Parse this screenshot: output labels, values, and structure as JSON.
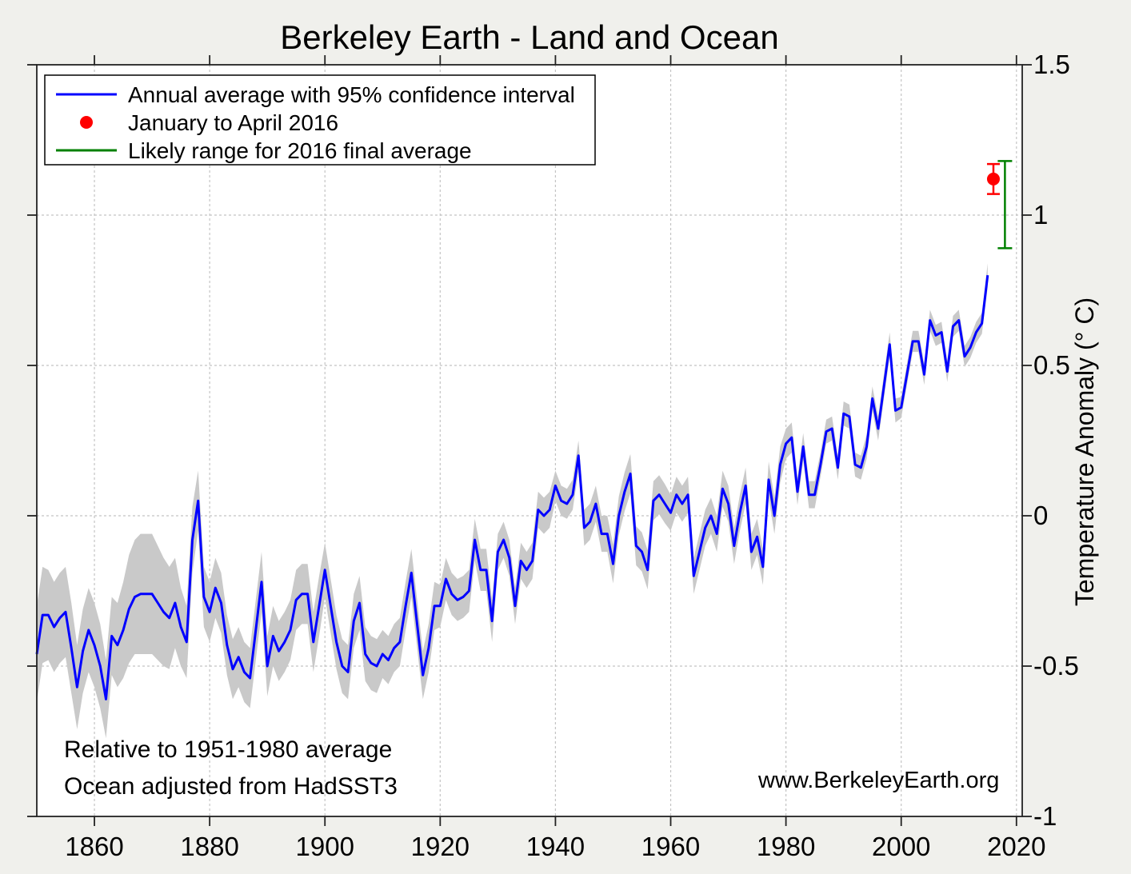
{
  "title": "Berkeley Earth - Land and Ocean",
  "watermark": "www.BerkeleyEarth.org",
  "notes": [
    "Relative to 1951-1980 average",
    "Ocean adjusted from HadSST3"
  ],
  "legend": [
    {
      "label": "Annual average with 95% confidence interval",
      "marker": "line",
      "color": "#0000ff"
    },
    {
      "label": "January to April 2016",
      "marker": "dot",
      "color": "#ff0000"
    },
    {
      "label": "Likely range for 2016 final average",
      "marker": "line",
      "color": "#008000"
    }
  ],
  "colors": {
    "line": "#0000ff",
    "band": "#c9c9c9",
    "point": "#ff0000",
    "range": "#008000",
    "grid": "#c4c4c4",
    "axis": "#222222",
    "figure_bg": "#f0f0ec",
    "plot_bg": "#ffffff"
  },
  "chart_data": {
    "type": "line",
    "title": "Berkeley Earth - Land and Ocean",
    "xlabel": "",
    "ylabel": "Temperature Anomaly (° C)",
    "xlim": [
      1850,
      2021
    ],
    "ylim": [
      -1,
      1.5
    ],
    "grid": true,
    "legend_position": "top-left",
    "xticks": [
      1860,
      1880,
      1900,
      1920,
      1940,
      1960,
      1980,
      2000,
      2020
    ],
    "xtick_labels": [
      "1860",
      "1880",
      "1900",
      "1920",
      "1940",
      "1960",
      "1980",
      "2000",
      "2020"
    ],
    "yticks": [
      -1,
      -0.5,
      0,
      0.5,
      1,
      1.5
    ],
    "ytick_labels": [
      "-1",
      "-0.5",
      "0",
      "0.5",
      "1",
      "1.5"
    ],
    "series": [
      {
        "name": "Annual average with 95% confidence interval",
        "start_year": 1850,
        "end_year": 2015,
        "values": [
          -0.46,
          -0.33,
          -0.33,
          -0.37,
          -0.34,
          -0.32,
          -0.44,
          -0.57,
          -0.45,
          -0.38,
          -0.43,
          -0.5,
          -0.61,
          -0.4,
          -0.43,
          -0.38,
          -0.31,
          -0.27,
          -0.26,
          -0.26,
          -0.26,
          -0.29,
          -0.32,
          -0.34,
          -0.29,
          -0.37,
          -0.42,
          -0.08,
          0.05,
          -0.27,
          -0.32,
          -0.24,
          -0.29,
          -0.43,
          -0.51,
          -0.47,
          -0.52,
          -0.54,
          -0.38,
          -0.22,
          -0.5,
          -0.4,
          -0.45,
          -0.42,
          -0.38,
          -0.28,
          -0.26,
          -0.26,
          -0.42,
          -0.3,
          -0.18,
          -0.3,
          -0.42,
          -0.5,
          -0.52,
          -0.35,
          -0.29,
          -0.46,
          -0.49,
          -0.5,
          -0.46,
          -0.48,
          -0.44,
          -0.42,
          -0.3,
          -0.19,
          -0.36,
          -0.53,
          -0.44,
          -0.3,
          -0.3,
          -0.21,
          -0.26,
          -0.28,
          -0.27,
          -0.25,
          -0.08,
          -0.18,
          -0.18,
          -0.35,
          -0.12,
          -0.08,
          -0.14,
          -0.3,
          -0.15,
          -0.18,
          -0.15,
          0.02,
          0.0,
          0.02,
          0.1,
          0.05,
          0.04,
          0.07,
          0.2,
          -0.04,
          -0.02,
          0.04,
          -0.06,
          -0.06,
          -0.16,
          0.0,
          0.08,
          0.14,
          -0.1,
          -0.12,
          -0.18,
          0.05,
          0.07,
          0.04,
          0.01,
          0.07,
          0.04,
          0.07,
          -0.2,
          -0.12,
          -0.04,
          0.0,
          -0.06,
          0.09,
          0.04,
          -0.1,
          0.01,
          0.1,
          -0.12,
          -0.07,
          -0.17,
          0.12,
          0.0,
          0.17,
          0.24,
          0.26,
          0.08,
          0.23,
          0.07,
          0.07,
          0.17,
          0.28,
          0.29,
          0.16,
          0.34,
          0.33,
          0.17,
          0.16,
          0.23,
          0.39,
          0.29,
          0.43,
          0.57,
          0.35,
          0.36,
          0.47,
          0.58,
          0.58,
          0.47,
          0.65,
          0.6,
          0.61,
          0.48,
          0.63,
          0.65,
          0.53,
          0.56,
          0.61,
          0.64,
          0.8
        ],
        "uncertainty_95": [
          0.16,
          0.16,
          0.15,
          0.15,
          0.15,
          0.15,
          0.15,
          0.14,
          0.14,
          0.14,
          0.14,
          0.14,
          0.13,
          0.13,
          0.14,
          0.16,
          0.18,
          0.19,
          0.2,
          0.2,
          0.2,
          0.19,
          0.18,
          0.17,
          0.15,
          0.13,
          0.12,
          0.11,
          0.1,
          0.1,
          0.1,
          0.1,
          0.1,
          0.1,
          0.1,
          0.1,
          0.1,
          0.1,
          0.1,
          0.1,
          0.1,
          0.1,
          0.1,
          0.1,
          0.1,
          0.1,
          0.1,
          0.1,
          0.1,
          0.1,
          0.09,
          0.09,
          0.09,
          0.09,
          0.09,
          0.09,
          0.09,
          0.09,
          0.09,
          0.09,
          0.08,
          0.08,
          0.08,
          0.08,
          0.08,
          0.08,
          0.08,
          0.08,
          0.08,
          0.08,
          0.07,
          0.07,
          0.07,
          0.07,
          0.07,
          0.07,
          0.07,
          0.07,
          0.07,
          0.07,
          0.06,
          0.06,
          0.06,
          0.06,
          0.06,
          0.06,
          0.06,
          0.06,
          0.06,
          0.06,
          0.05,
          0.05,
          0.05,
          0.05,
          0.05,
          0.06,
          0.06,
          0.06,
          0.06,
          0.06,
          0.065,
          0.065,
          0.065,
          0.065,
          0.065,
          0.065,
          0.065,
          0.065,
          0.065,
          0.065,
          0.06,
          0.06,
          0.06,
          0.06,
          0.06,
          0.06,
          0.06,
          0.06,
          0.06,
          0.06,
          0.06,
          0.06,
          0.06,
          0.06,
          0.06,
          0.06,
          0.06,
          0.06,
          0.06,
          0.06,
          0.05,
          0.05,
          0.045,
          0.045,
          0.045,
          0.045,
          0.04,
          0.04,
          0.04,
          0.04,
          0.04,
          0.04,
          0.04,
          0.04,
          0.04,
          0.04,
          0.04,
          0.04,
          0.04,
          0.04,
          0.035,
          0.035,
          0.035,
          0.035,
          0.035,
          0.035,
          0.035,
          0.035,
          0.035,
          0.035,
          0.035,
          0.035,
          0.035,
          0.035,
          0.035,
          0.04
        ]
      },
      {
        "name": "January to April 2016",
        "type": "point-with-error",
        "year": 2016,
        "value": 1.12,
        "error_low": 1.07,
        "error_high": 1.17
      },
      {
        "name": "Likely range for 2016 final average",
        "type": "range-bar",
        "year": 2018,
        "low": 0.89,
        "high": 1.18
      }
    ]
  }
}
